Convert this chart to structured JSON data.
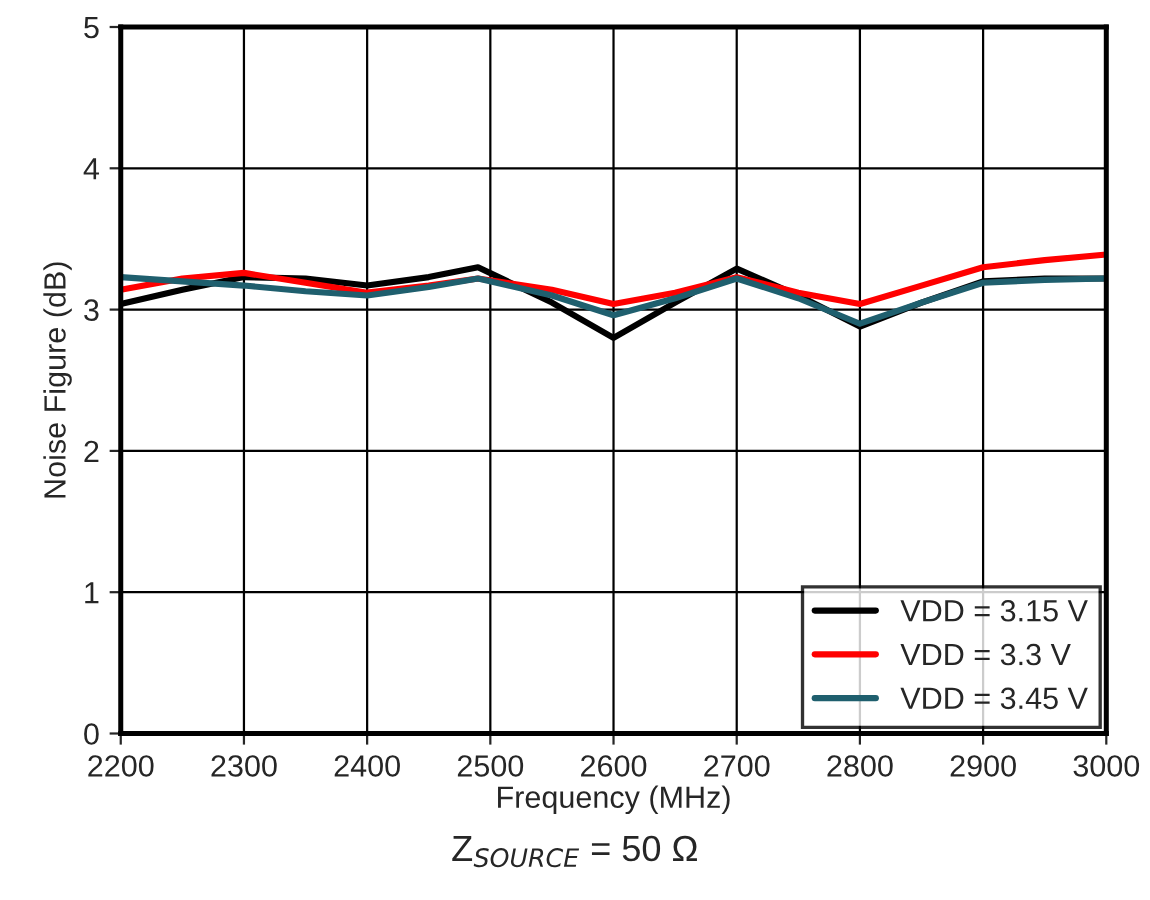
{
  "chart_data": {
    "type": "line",
    "xlabel": "Frequency (MHz)",
    "ylabel": "Noise Figure (dB)",
    "x": [
      2200,
      2250,
      2300,
      2350,
      2400,
      2450,
      2490,
      2550,
      2600,
      2650,
      2700,
      2750,
      2800,
      2850,
      2900,
      2950,
      3000
    ],
    "series": [
      {
        "name": "VDD = 3.15 V",
        "color": "#000000",
        "values": [
          3.04,
          3.14,
          3.23,
          3.22,
          3.17,
          3.23,
          3.3,
          3.05,
          2.8,
          3.05,
          3.29,
          3.1,
          2.88,
          3.05,
          3.2,
          3.22,
          3.22
        ]
      },
      {
        "name": "VDD = 3.3 V",
        "color": "#ff0000",
        "values": [
          3.14,
          3.22,
          3.26,
          3.19,
          3.12,
          3.17,
          3.22,
          3.14,
          3.04,
          3.12,
          3.23,
          3.12,
          3.04,
          3.17,
          3.3,
          3.35,
          3.39
        ]
      },
      {
        "name": "VDD = 3.45 V",
        "color": "#1f5f6e",
        "values": [
          3.23,
          3.2,
          3.17,
          3.13,
          3.1,
          3.16,
          3.22,
          3.1,
          2.96,
          3.08,
          3.22,
          3.08,
          2.9,
          3.05,
          3.19,
          3.21,
          3.22
        ]
      }
    ],
    "xlim": [
      2200,
      3000
    ],
    "xticks": [
      2200,
      2300,
      2400,
      2500,
      2600,
      2700,
      2800,
      2900,
      3000
    ],
    "ylim": [
      0,
      5
    ],
    "yticks": [
      0,
      1,
      2,
      3,
      4,
      5
    ],
    "grid": true,
    "legend": "bottom right",
    "line_style": "solid",
    "marker": "none",
    "annotations": [
      "Z$_{SOURCE}$ = 50 Ω"
    ]
  }
}
